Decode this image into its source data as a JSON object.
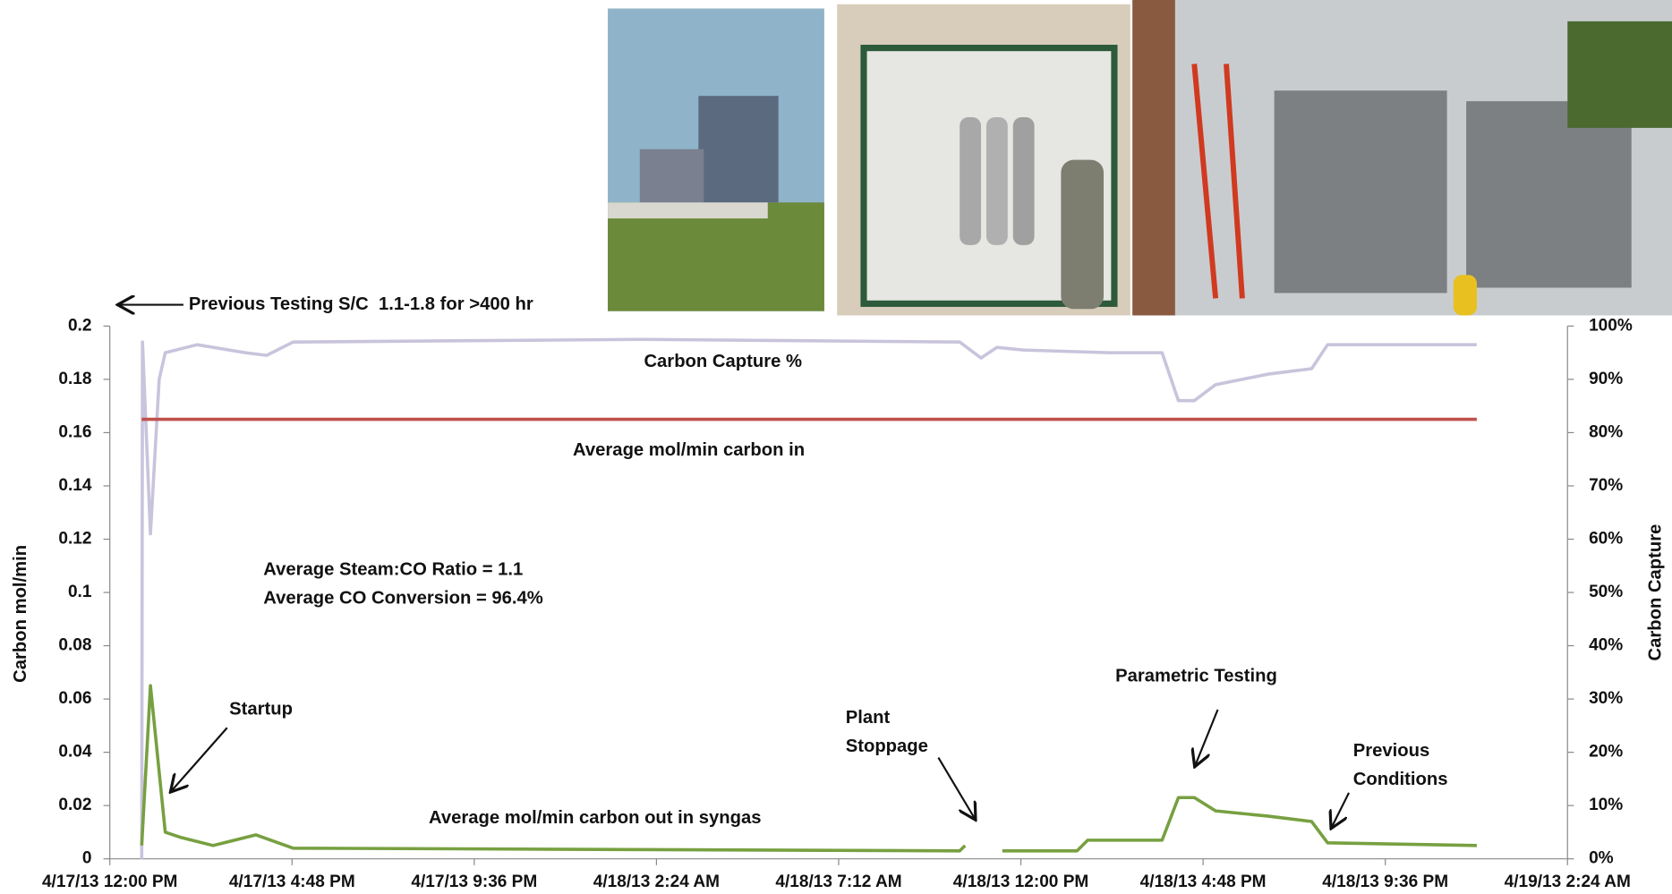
{
  "chart_data": {
    "type": "line",
    "ylabel": "Carbon mol/min",
    "y2label": "Carbon Capture",
    "xlim": [
      0,
      38.4
    ],
    "xticks": [
      {
        "value": 0,
        "label": "4/17/13 12:00 PM"
      },
      {
        "value": 4.8,
        "label": "4/17/13 4:48 PM"
      },
      {
        "value": 9.6,
        "label": "4/17/13 9:36 PM"
      },
      {
        "value": 14.4,
        "label": "4/18/13 2:24 AM"
      },
      {
        "value": 19.2,
        "label": "4/18/13 7:12 AM"
      },
      {
        "value": 24,
        "label": "4/18/13 12:00 PM"
      },
      {
        "value": 28.8,
        "label": "4/18/13 4:48 PM"
      },
      {
        "value": 33.6,
        "label": "4/18/13 9:36 PM"
      },
      {
        "value": 38.4,
        "label": "4/19/13 2:24 AM"
      }
    ],
    "ylim": [
      0,
      0.2
    ],
    "yticks": [
      0,
      0.02,
      0.04,
      0.06,
      0.08,
      0.1,
      0.12,
      0.14,
      0.16,
      0.18,
      0.2
    ],
    "y2lim": [
      0,
      100
    ],
    "y2ticks": [
      {
        "value": 0,
        "label": "0%"
      },
      {
        "value": 10,
        "label": "10%"
      },
      {
        "value": 20,
        "label": "20%"
      },
      {
        "value": 30,
        "label": "30%"
      },
      {
        "value": 40,
        "label": "40%"
      },
      {
        "value": 50,
        "label": "50%"
      },
      {
        "value": 60,
        "label": "60%"
      },
      {
        "value": 70,
        "label": "70%"
      },
      {
        "value": 80,
        "label": "80%"
      },
      {
        "value": 90,
        "label": "90%"
      },
      {
        "value": 100,
        "label": "100%"
      }
    ],
    "series": [
      {
        "name": "Carbon Capture %",
        "color": "#c9c3dc",
        "axis": "y2",
        "x": [
          0.84,
          0.86,
          1.07,
          1.3,
          1.46,
          2.3,
          3.57,
          4.13,
          4.83,
          14,
          22.39,
          22.95,
          23.37,
          24.07,
          26.32,
          27.72,
          28.15,
          28.57,
          29.13,
          30.53,
          31.66,
          32.08,
          36.01
        ],
        "values": [
          0,
          97,
          61,
          90,
          95,
          96.5,
          95,
          94.5,
          97,
          97.5,
          97,
          94,
          96,
          95.5,
          95,
          95,
          86,
          86,
          89,
          91,
          92,
          96.5,
          96.5
        ]
      },
      {
        "name": "Average mol/min carbon in",
        "color": "#c0504d",
        "x": [
          0.84,
          36.01
        ],
        "values": [
          0.165,
          0.165
        ]
      },
      {
        "name": "Average mol/min carbon out in syngas",
        "color": "#77a040",
        "x": [
          0.84,
          1.07,
          1.46,
          1.88,
          2.72,
          3.85,
          4.83,
          22.39,
          22.53,
          23,
          23.51,
          25.48,
          25.76,
          27.72,
          28.15,
          28.57,
          29.13,
          30.53,
          31.66,
          32.08,
          36.01
        ],
        "values": [
          0.005,
          0.065,
          0.01,
          0.008,
          0.005,
          0.009,
          0.004,
          0.003,
          0.005,
          null,
          0.003,
          0.003,
          0.007,
          0.007,
          0.023,
          0.023,
          0.018,
          0.016,
          0.014,
          0.006,
          0.005
        ]
      }
    ],
    "annotations": [
      "Previous Testing S/C  1.1-1.8 for >400 hr",
      "Average Steam:CO Ratio = 1.1",
      "Average CO Conversion = 96.4%",
      "Startup",
      "Plant",
      "Stoppage",
      "Parametric Testing",
      "Previous",
      "Conditions"
    ]
  }
}
